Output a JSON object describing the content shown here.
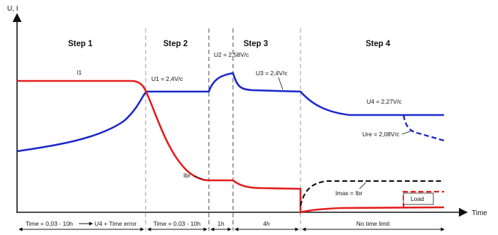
{
  "axes": {
    "y_label": "U, I",
    "x_label": "Time"
  },
  "steps": [
    "Step 1",
    "Step 2",
    "Step 3",
    "Step 4"
  ],
  "annotations": {
    "i1": "I1",
    "u1": "U1 = 2,4V/c",
    "u2": "U2 = 2,58V/c",
    "u3": "U3 = 2,4V/c",
    "u4": "U4 = 2,27V/c",
    "ure": "Ure = 2,08V/c",
    "ibr": "Ibr",
    "imax": "Imax = Ibr",
    "load": "Load"
  },
  "durations": [
    "Time = 0,03 - 10h",
    "U4 + Time error",
    "Time = 0,03 - 10h",
    "1h",
    "4h",
    "No time limit"
  ],
  "colors": {
    "voltage": "#1a27c9",
    "current": "#e31b1b",
    "imax": "#111111",
    "axis": "#111111",
    "divider": "#888888"
  }
}
